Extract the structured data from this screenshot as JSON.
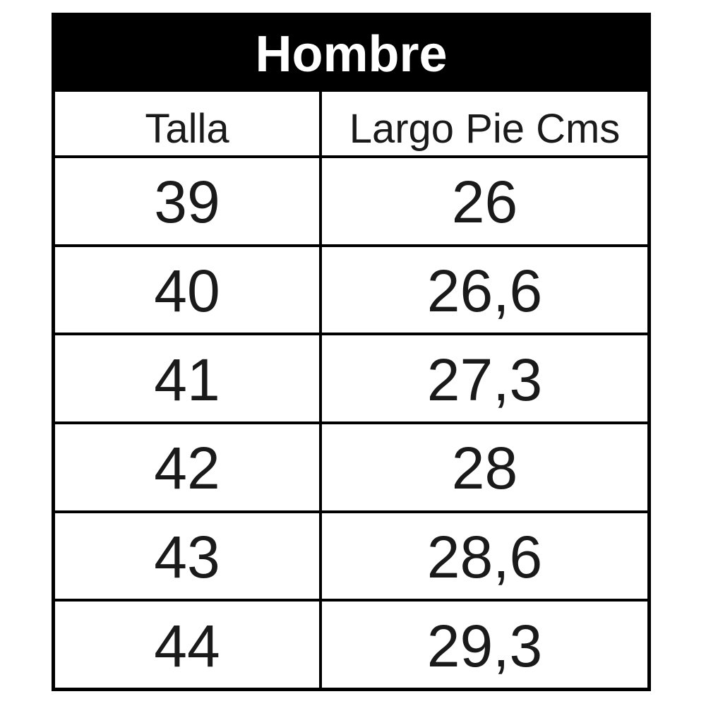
{
  "table": {
    "title": "Hombre",
    "columns": [
      "Talla",
      "Largo Pie Cms"
    ],
    "rows": [
      [
        "39",
        "26"
      ],
      [
        "40",
        "26,6"
      ],
      [
        "41",
        "27,3"
      ],
      [
        "42",
        "28"
      ],
      [
        "43",
        "28,6"
      ],
      [
        "44",
        "29,3"
      ]
    ]
  },
  "colors": {
    "title_bg": "#000000",
    "title_text": "#ffffff",
    "border": "#000000",
    "cell_bg": "#ffffff",
    "cell_text": "#1a1a1a"
  },
  "chart_data": {
    "type": "table",
    "title": "Hombre",
    "columns": [
      "Talla",
      "Largo Pie Cms"
    ],
    "rows": [
      [
        "39",
        "26"
      ],
      [
        "40",
        "26,6"
      ],
      [
        "41",
        "27,3"
      ],
      [
        "42",
        "28"
      ],
      [
        "43",
        "28,6"
      ],
      [
        "44",
        "29,3"
      ]
    ],
    "notes": "Men's shoe size chart: European size (Talla) vs foot length in centimeters (Largo Pie Cms); decimal comma notation"
  }
}
